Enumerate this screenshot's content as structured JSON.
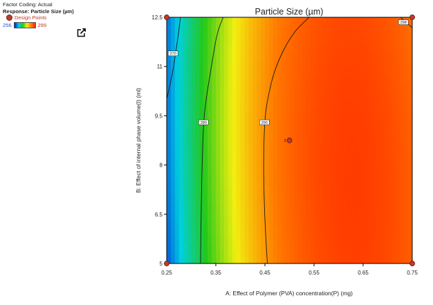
{
  "legend": {
    "factor_coding": "Factor Coding: Actual",
    "response": "Response: Particle Size (µm)",
    "design_points_label": "Design Points",
    "scale_min": "256",
    "scale_max": "299"
  },
  "icons": {
    "export": "export-arrow-icon"
  },
  "colors": {
    "design_point": "#c0392b",
    "scale_min_label": "#1f4fd6",
    "scale_max_label": "#c0392b",
    "color_scale": [
      "#0019d6",
      "#00d0e0",
      "#23c81a",
      "#f2ef10",
      "#ff7a00",
      "#ff2a00"
    ]
  },
  "chart_data": {
    "type": "heatmap",
    "subtype": "contour",
    "title": "Particle Size (µm)",
    "xlabel": "A: Effect of Polymer (PVA) concentration(P) (mg)",
    "ylabel": "B: Effect of internal phase volume(I) (ml)",
    "xlim": [
      0.25,
      0.75
    ],
    "ylim": [
      5,
      12.5
    ],
    "x_ticks": [
      "0.25",
      "0.35",
      "0.45",
      "0.55",
      "0.65",
      "0.75"
    ],
    "y_ticks": [
      "5",
      "6.5",
      "8",
      "9.5",
      "11",
      "12.5"
    ],
    "color_range": [
      256,
      299
    ],
    "contours": [
      {
        "level": "270",
        "points": [
          [
            0.278,
            12.5
          ],
          [
            0.274,
            12.0
          ],
          [
            0.268,
            11.4
          ],
          [
            0.262,
            10.8
          ],
          [
            0.25,
            10.0
          ]
        ],
        "label_at": [
          0.263,
          11.4
        ]
      },
      {
        "level": "280",
        "points": [
          [
            0.365,
            12.5
          ],
          [
            0.352,
            12.0
          ],
          [
            0.341,
            11.0
          ],
          [
            0.33,
            10.0
          ],
          [
            0.325,
            9.3
          ],
          [
            0.322,
            8.0
          ],
          [
            0.32,
            6.5
          ],
          [
            0.319,
            5.0
          ]
        ],
        "label_at": [
          0.325,
          9.3
        ]
      },
      {
        "level": "290",
        "points": [
          [
            0.54,
            12.5
          ],
          [
            0.505,
            12.0
          ],
          [
            0.471,
            11.0
          ],
          [
            0.455,
            10.0
          ],
          [
            0.449,
            9.3
          ],
          [
            0.447,
            8.0
          ],
          [
            0.449,
            6.5
          ],
          [
            0.455,
            5.0
          ]
        ],
        "label_at": [
          0.449,
          9.3
        ]
      },
      {
        "level": "298",
        "points": [
          [
            0.726,
            12.5
          ],
          [
            0.75,
            12.18
          ]
        ],
        "label_at": [
          0.732,
          12.35
        ]
      }
    ],
    "design_points": [
      {
        "x": 0.25,
        "y": 12.5,
        "label": ""
      },
      {
        "x": 0.75,
        "y": 12.5,
        "label": ""
      },
      {
        "x": 0.25,
        "y": 5,
        "label": ""
      },
      {
        "x": 0.75,
        "y": 5,
        "label": ""
      },
      {
        "x": 0.5,
        "y": 8.75,
        "label": "3"
      }
    ],
    "grid": false,
    "legend_position": "top-left"
  }
}
